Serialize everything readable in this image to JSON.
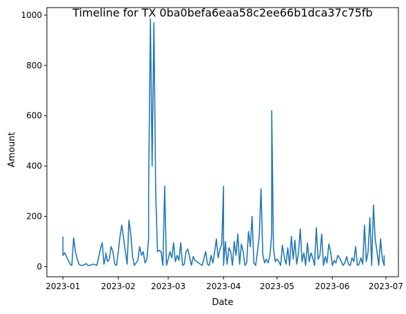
{
  "chart_data": {
    "type": "line",
    "title": "Timeline for TX 0ba0befa6eaa58c2ee66b1dca37c75fb",
    "xlabel": "Date",
    "ylabel": "Amount",
    "xlim": [
      "2022-12-23",
      "2023-07-08"
    ],
    "ylim": [
      -40,
      1030
    ],
    "grid": false,
    "xticks": [
      {
        "value": "2023-01-01",
        "label": "2023-01"
      },
      {
        "value": "2023-02-01",
        "label": "2023-02"
      },
      {
        "value": "2023-03-01",
        "label": "2023-03"
      },
      {
        "value": "2023-04-01",
        "label": "2023-04"
      },
      {
        "value": "2023-05-01",
        "label": "2023-05"
      },
      {
        "value": "2023-06-01",
        "label": "2023-06"
      },
      {
        "value": "2023-07-01",
        "label": "2023-07"
      }
    ],
    "yticks": [
      {
        "value": 0,
        "label": "0"
      },
      {
        "value": 200,
        "label": "200"
      },
      {
        "value": 400,
        "label": "400"
      },
      {
        "value": 600,
        "label": "600"
      },
      {
        "value": 800,
        "label": "800"
      },
      {
        "value": 1000,
        "label": "1000"
      }
    ],
    "series": [
      {
        "color": "#1f77b4",
        "x": [
          "2023-01-01",
          "2023-01-01",
          "2023-01-02",
          "2023-01-03",
          "2023-01-05",
          "2023-01-06",
          "2023-01-07",
          "2023-01-08",
          "2023-01-09",
          "2023-01-10",
          "2023-01-11",
          "2023-01-12",
          "2023-01-13",
          "2023-01-14",
          "2023-01-15",
          "2023-01-16",
          "2023-01-18",
          "2023-01-20",
          "2023-01-22",
          "2023-01-23",
          "2023-01-24",
          "2023-01-25",
          "2023-01-25",
          "2023-01-26",
          "2023-01-27",
          "2023-01-28",
          "2023-01-29",
          "2023-01-30",
          "2023-01-31",
          "2023-02-01",
          "2023-02-02",
          "2023-02-03",
          "2023-02-05",
          "2023-02-06",
          "2023-02-07",
          "2023-02-08",
          "2023-02-09",
          "2023-02-10",
          "2023-02-12",
          "2023-02-13",
          "2023-02-14",
          "2023-02-15",
          "2023-02-16",
          "2023-02-17",
          "2023-02-18",
          "2023-02-18",
          "2023-02-19",
          "2023-02-20",
          "2023-02-21",
          "2023-02-22",
          "2023-02-23",
          "2023-02-24",
          "2023-02-25",
          "2023-02-26",
          "2023-02-27",
          "2023-02-28",
          "2023-03-01",
          "2023-03-02",
          "2023-03-03",
          "2023-03-04",
          "2023-03-05",
          "2023-03-06",
          "2023-03-07",
          "2023-03-08",
          "2023-03-09",
          "2023-03-10",
          "2023-03-11",
          "2023-03-12",
          "2023-03-14",
          "2023-03-15",
          "2023-03-16",
          "2023-03-17",
          "2023-03-18",
          "2023-03-20",
          "2023-03-22",
          "2023-03-23",
          "2023-03-24",
          "2023-03-25",
          "2023-03-26",
          "2023-03-27",
          "2023-03-28",
          "2023-03-29",
          "2023-03-30",
          "2023-03-31",
          "2023-04-01",
          "2023-04-01",
          "2023-04-02",
          "2023-04-03",
          "2023-04-04",
          "2023-04-05",
          "2023-04-06",
          "2023-04-07",
          "2023-04-08",
          "2023-04-09",
          "2023-04-10",
          "2023-04-11",
          "2023-04-12",
          "2023-04-13",
          "2023-04-14",
          "2023-04-15",
          "2023-04-16",
          "2023-04-17",
          "2023-04-18",
          "2023-04-19",
          "2023-04-20",
          "2023-04-21",
          "2023-04-22",
          "2023-04-23",
          "2023-04-24",
          "2023-04-25",
          "2023-04-26",
          "2023-04-27",
          "2023-04-28",
          "2023-04-28",
          "2023-04-29",
          "2023-04-30",
          "2023-05-01",
          "2023-05-02",
          "2023-05-03",
          "2023-05-04",
          "2023-05-05",
          "2023-05-06",
          "2023-05-07",
          "2023-05-08",
          "2023-05-09",
          "2023-05-10",
          "2023-05-11",
          "2023-05-12",
          "2023-05-13",
          "2023-05-14",
          "2023-05-15",
          "2023-05-16",
          "2023-05-17",
          "2023-05-18",
          "2023-05-19",
          "2023-05-20",
          "2023-05-21",
          "2023-05-22",
          "2023-05-23",
          "2023-05-24",
          "2023-05-25",
          "2023-05-26",
          "2023-05-27",
          "2023-05-28",
          "2023-05-29",
          "2023-05-30",
          "2023-05-31",
          "2023-06-01",
          "2023-06-02",
          "2023-06-03",
          "2023-06-04",
          "2023-06-05",
          "2023-06-06",
          "2023-06-07",
          "2023-06-08",
          "2023-06-09",
          "2023-06-10",
          "2023-06-11",
          "2023-06-12",
          "2023-06-13",
          "2023-06-14",
          "2023-06-15",
          "2023-06-16",
          "2023-06-17",
          "2023-06-18",
          "2023-06-19",
          "2023-06-20",
          "2023-06-21",
          "2023-06-22",
          "2023-06-23",
          "2023-06-24",
          "2023-06-25",
          "2023-06-26",
          "2023-06-27",
          "2023-06-28",
          "2023-06-29",
          "2023-06-30",
          "2023-06-30"
        ],
        "y": [
          120,
          45,
          55,
          40,
          10,
          5,
          115,
          60,
          30,
          10,
          5,
          5,
          8,
          12,
          5,
          5,
          10,
          5,
          70,
          95,
          10,
          40,
          55,
          20,
          30,
          80,
          60,
          10,
          5,
          60,
          120,
          165,
          60,
          10,
          185,
          130,
          40,
          5,
          25,
          80,
          45,
          60,
          15,
          30,
          110,
          300,
          985,
          400,
          970,
          295,
          60,
          65,
          60,
          5,
          320,
          5,
          30,
          60,
          35,
          95,
          20,
          45,
          25,
          95,
          5,
          10,
          60,
          70,
          5,
          40,
          25,
          20,
          15,
          5,
          60,
          10,
          5,
          45,
          15,
          60,
          110,
          35,
          70,
          90,
          320,
          5,
          100,
          10,
          75,
          60,
          5,
          100,
          45,
          130,
          10,
          90,
          60,
          5,
          15,
          140,
          80,
          200,
          15,
          5,
          60,
          120,
          310,
          50,
          15,
          30,
          15,
          45,
          130,
          620,
          70,
          20,
          30,
          20,
          5,
          85,
          40,
          10,
          75,
          5,
          120,
          30,
          105,
          10,
          55,
          150,
          20,
          55,
          5,
          95,
          20,
          55,
          35,
          5,
          155,
          30,
          45,
          130,
          5,
          40,
          15,
          90,
          60,
          5,
          25,
          15,
          45,
          35,
          20,
          5,
          15,
          40,
          10,
          5,
          35,
          20,
          80,
          5,
          10,
          35,
          10,
          165,
          20,
          60,
          195,
          5,
          245,
          110,
          60,
          5,
          110,
          30,
          5,
          45
        ]
      }
    ]
  }
}
